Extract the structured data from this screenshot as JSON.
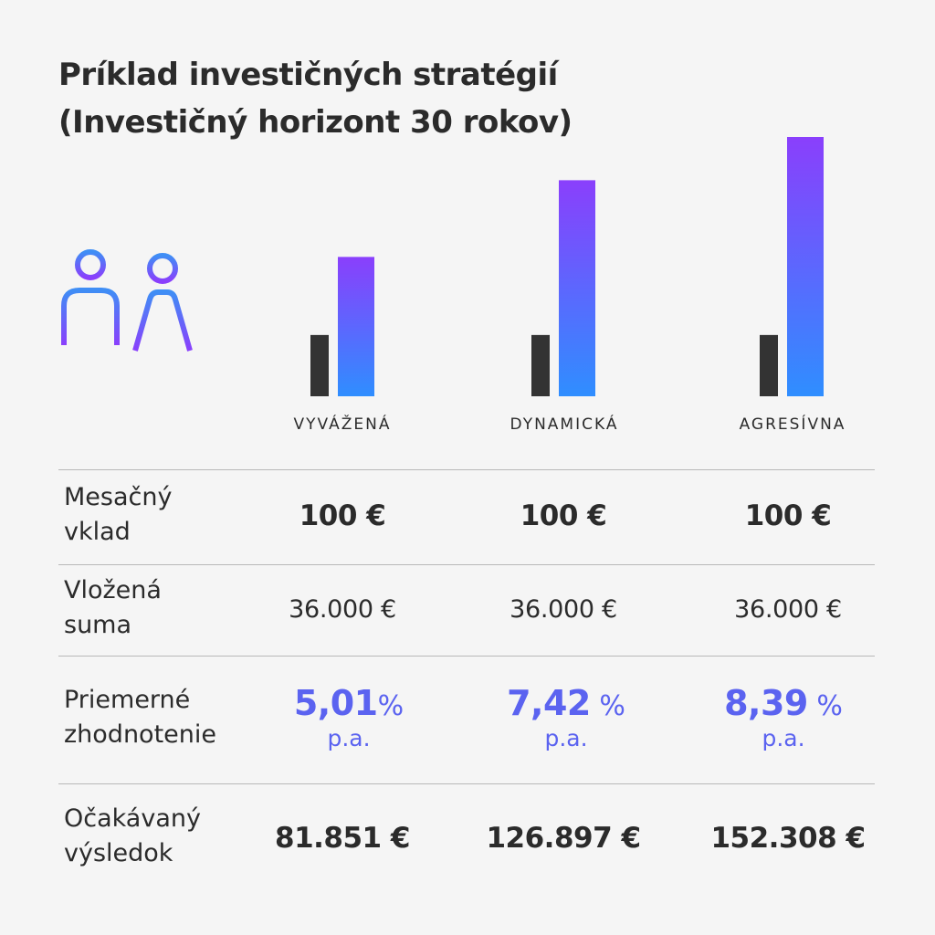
{
  "title": {
    "line1": "Príklad investičných stratégií",
    "line2": "(Investičný horizont 30 rokov)"
  },
  "icons": [
    "man-icon",
    "woman-icon"
  ],
  "colors": {
    "deposit_bar": "#333333",
    "result_bar_top": "#8a3ffc",
    "result_bar_bottom": "#2f8eff",
    "rate_text": "#5b63f0",
    "person_icon_top": "#3f8ef5",
    "person_icon_bottom": "#8a3ffc"
  },
  "columns": [
    "VYVÁŽENÁ",
    "DYNAMICKÁ",
    "AGRESÍVNA"
  ],
  "rows": {
    "monthly": {
      "label_line1": "Mesačný",
      "label_line2": "vklad",
      "values": [
        "100 €",
        "100 €",
        "100 €"
      ]
    },
    "deposited": {
      "label_line1": "Vložená",
      "label_line2": "suma",
      "values": [
        "36.000 €",
        "36.000 €",
        "36.000 €"
      ]
    },
    "rate": {
      "label_line1": "Priemerné",
      "label_line2": "zhodnotenie",
      "values": [
        {
          "num": "5,01",
          "pct": "%",
          "pa": "p.a."
        },
        {
          "num": "7,42",
          "pct": " %",
          "pa": "p.a."
        },
        {
          "num": "8,39",
          "pct": " %",
          "pa": "p.a."
        }
      ]
    },
    "result": {
      "label_line1": "Očakávaný",
      "label_line2": "výsledok",
      "values": [
        "81.851 €",
        "126.897 €",
        "152.308 €"
      ]
    }
  },
  "chart_data": {
    "type": "bar",
    "categories": [
      "VYVÁŽENÁ",
      "DYNAMICKÁ",
      "AGRESÍVNA"
    ],
    "series": [
      {
        "values": [
          36000,
          36000,
          36000
        ]
      },
      {
        "values": [
          81851,
          126897,
          152308
        ]
      }
    ],
    "title": "Príklad investičných stratégií (Investičný horizont 30 rokov)",
    "xlabel": "",
    "ylabel": "",
    "ylim": [
      0,
      152308
    ],
    "grid": false
  }
}
